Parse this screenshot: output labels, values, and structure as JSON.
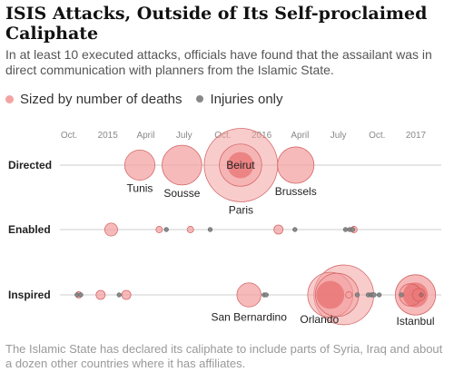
{
  "title": "ISIS Attacks, Outside of Its Self-proclaimed Caliphate",
  "subtitle": "In at least 10 executed attacks, officials have found that the assailant was in direct communication with planners from the Islamic State.",
  "legend": {
    "deaths": "Sized by number of deaths",
    "injuries": "Injuries only"
  },
  "footer": "The Islamic State has declared its caliphate to include parts of Syria, Iraq and about a dozen other countries where it has affiliates.",
  "colors": {
    "bubble_fill": "#f4a3a3",
    "bubble_stroke": "#d46a6a",
    "bubble_dark": "#e04a4a",
    "injury_dot": "#888888",
    "axis_line": "#cccccc",
    "grid_line": "#e6e6e6"
  },
  "chart_data": {
    "type": "scatter",
    "title": "ISIS Attacks, Outside of Its Self-proclaimed Caliphate",
    "x_ticks": [
      "Oct.",
      "2015",
      "April",
      "July",
      "Oct.",
      "2016",
      "April",
      "July",
      "Oct.",
      "2017"
    ],
    "rows": [
      "Directed",
      "Enabled",
      "Inspired"
    ],
    "points": [
      {
        "row": "Directed",
        "date": "2015-03-18",
        "deaths": 22,
        "kind": "deaths",
        "label": "Tunis"
      },
      {
        "row": "Directed",
        "date": "2015-06-26",
        "deaths": 38,
        "kind": "deaths",
        "label": "Sousse"
      },
      {
        "row": "Directed",
        "date": "2015-11-12",
        "deaths": 43,
        "kind": "deaths",
        "label": "Beirut",
        "label_inside": true
      },
      {
        "row": "Directed",
        "date": "2015-11-13",
        "deaths": 130,
        "kind": "deaths",
        "label": "Paris"
      },
      {
        "row": "Directed",
        "date": "2016-03-22",
        "deaths": 32,
        "kind": "deaths",
        "label": "Brussels"
      },
      {
        "row": "Enabled",
        "date": "2015-01-09",
        "deaths": 4,
        "kind": "deaths"
      },
      {
        "row": "Enabled",
        "date": "2015-05-03",
        "deaths": 1,
        "kind": "deaths"
      },
      {
        "row": "Enabled",
        "date": "2015-05-20",
        "kind": "injuries"
      },
      {
        "row": "Enabled",
        "date": "2015-07-16",
        "deaths": 1,
        "kind": "deaths"
      },
      {
        "row": "Enabled",
        "date": "2015-09-01",
        "kind": "injuries"
      },
      {
        "row": "Enabled",
        "date": "2016-02-10",
        "deaths": 2,
        "kind": "deaths"
      },
      {
        "row": "Enabled",
        "date": "2016-03-20",
        "kind": "injuries"
      },
      {
        "row": "Enabled",
        "date": "2016-07-18",
        "kind": "injuries"
      },
      {
        "row": "Enabled",
        "date": "2016-07-28",
        "kind": "injuries"
      },
      {
        "row": "Enabled",
        "date": "2016-08-04",
        "kind": "injuries"
      },
      {
        "row": "Enabled",
        "date": "2016-08-07",
        "deaths": 1,
        "kind": "deaths"
      },
      {
        "row": "Inspired",
        "date": "2014-10-20",
        "kind": "injuries"
      },
      {
        "row": "Inspired",
        "date": "2014-10-24",
        "deaths": 1,
        "kind": "deaths"
      },
      {
        "row": "Inspired",
        "date": "2014-10-29",
        "kind": "injuries"
      },
      {
        "row": "Inspired",
        "date": "2014-12-15",
        "deaths": 2,
        "kind": "deaths"
      },
      {
        "row": "Inspired",
        "date": "2015-01-28",
        "kind": "injuries"
      },
      {
        "row": "Inspired",
        "date": "2015-02-14",
        "deaths": 2,
        "kind": "deaths"
      },
      {
        "row": "Inspired",
        "date": "2015-12-02",
        "deaths": 14,
        "kind": "deaths",
        "label": "San Bernardino"
      },
      {
        "row": "Inspired",
        "date": "2016-01-07",
        "kind": "injuries"
      },
      {
        "row": "Inspired",
        "date": "2016-01-12",
        "kind": "injuries"
      },
      {
        "row": "Inspired",
        "date": "2016-06-12",
        "deaths": 49,
        "kind": "deaths",
        "label": "Orlando"
      },
      {
        "row": "Inspired",
        "date": "2016-06-28",
        "deaths": 45,
        "kind": "deaths"
      },
      {
        "row": "Inspired",
        "date": "2016-07-14",
        "deaths": 86,
        "kind": "deaths"
      },
      {
        "row": "Inspired",
        "date": "2016-07-26",
        "deaths": 1,
        "kind": "deaths"
      },
      {
        "row": "Inspired",
        "date": "2016-08-15",
        "kind": "injuries"
      },
      {
        "row": "Inspired",
        "date": "2016-09-10",
        "kind": "injuries"
      },
      {
        "row": "Inspired",
        "date": "2016-09-17",
        "kind": "injuries"
      },
      {
        "row": "Inspired",
        "date": "2016-09-20",
        "kind": "injuries"
      },
      {
        "row": "Inspired",
        "date": "2016-09-24",
        "kind": "injuries"
      },
      {
        "row": "Inspired",
        "date": "2016-10-06",
        "kind": "injuries"
      },
      {
        "row": "Inspired",
        "date": "2016-11-28",
        "kind": "injuries"
      },
      {
        "row": "Inspired",
        "date": "2016-12-19",
        "deaths": 12,
        "kind": "deaths"
      },
      {
        "row": "Inspired",
        "date": "2016-12-31",
        "deaths": 39,
        "kind": "deaths",
        "label": "Istanbul"
      },
      {
        "row": "Inspired",
        "date": "2017-01-08",
        "deaths": 4,
        "kind": "deaths"
      },
      {
        "row": "Inspired",
        "date": "2017-01-14",
        "kind": "injuries"
      }
    ]
  }
}
